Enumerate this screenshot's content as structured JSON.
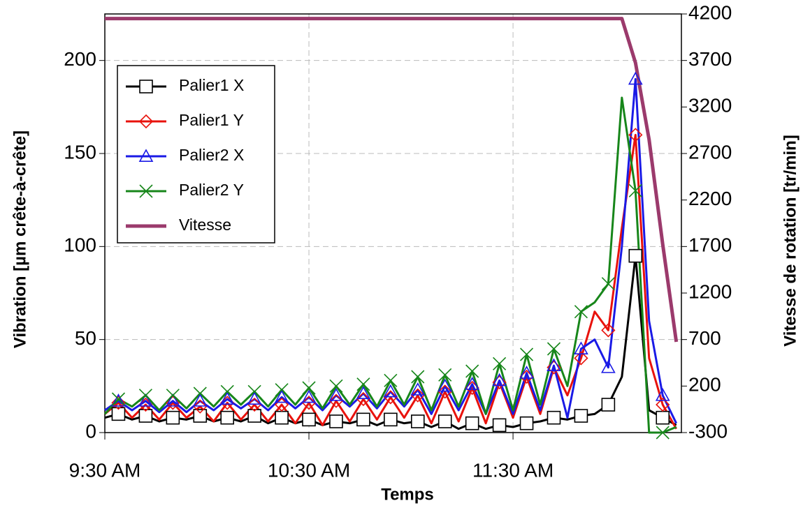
{
  "chart_data": {
    "type": "line",
    "x_label": "Temps",
    "y_label": "Vibration [µm crête-à-crête]",
    "y2_label": "Vitesse de rotation [tr/min]",
    "x": [
      570,
      574,
      578,
      582,
      586,
      590,
      594,
      598,
      602,
      606,
      610,
      614,
      618,
      622,
      626,
      630,
      634,
      638,
      642,
      646,
      650,
      654,
      658,
      662,
      666,
      670,
      674,
      678,
      682,
      686,
      690,
      694,
      698,
      702,
      706,
      710,
      714,
      718,
      722,
      726,
      730,
      734,
      738
    ],
    "xlim": [
      570,
      739.5
    ],
    "xticks": [
      {
        "value": 570,
        "label": "9:30 AM"
      },
      {
        "value": 630,
        "label": "10:30 AM"
      },
      {
        "value": 690,
        "label": "11:30 AM"
      }
    ],
    "ylim": [
      0,
      225
    ],
    "yticks": [
      0,
      50,
      100,
      150,
      200
    ],
    "y2lim": [
      -300,
      4200
    ],
    "y2ticks": [
      -300,
      200,
      700,
      1200,
      1700,
      2200,
      2700,
      3200,
      3700,
      4200
    ],
    "grid": true,
    "legend": "upper-left",
    "series": [
      {
        "name": "Palier1 X",
        "color": "#000000",
        "marker": "square",
        "values": [
          8,
          10,
          7,
          9,
          6,
          8,
          7,
          9,
          6,
          8,
          6,
          9,
          5,
          8,
          5,
          7,
          4,
          6,
          5,
          7,
          4,
          7,
          5,
          6,
          3,
          6,
          2,
          5,
          2,
          4,
          3,
          5,
          6,
          8,
          7,
          9,
          10,
          15,
          30,
          95,
          12,
          8,
          4
        ]
      },
      {
        "name": "Palier1 Y",
        "color": "#e8120c",
        "marker": "diamond",
        "values": [
          10,
          16,
          8,
          15,
          7,
          16,
          8,
          14,
          6,
          16,
          7,
          15,
          6,
          15,
          5,
          16,
          4,
          17,
          6,
          18,
          7,
          19,
          8,
          20,
          5,
          22,
          6,
          24,
          5,
          27,
          8,
          30,
          10,
          35,
          20,
          40,
          65,
          55,
          110,
          160,
          40,
          15,
          2
        ]
      },
      {
        "name": "Palier2 X",
        "color": "#1a1ae6",
        "marker": "triangle",
        "values": [
          12,
          17,
          12,
          17,
          11,
          17,
          11,
          17,
          12,
          18,
          13,
          18,
          12,
          19,
          13,
          19,
          12,
          20,
          14,
          21,
          13,
          22,
          14,
          23,
          10,
          25,
          12,
          26,
          10,
          28,
          10,
          32,
          12,
          36,
          8,
          45,
          50,
          35,
          100,
          190,
          60,
          20,
          5
        ]
      },
      {
        "name": "Palier2 Y",
        "color": "#17861a",
        "marker": "x",
        "values": [
          10,
          18,
          14,
          20,
          12,
          20,
          13,
          21,
          14,
          22,
          15,
          22,
          14,
          23,
          15,
          24,
          13,
          25,
          15,
          26,
          14,
          28,
          15,
          30,
          12,
          31,
          14,
          33,
          10,
          37,
          12,
          42,
          15,
          45,
          25,
          65,
          70,
          80,
          180,
          130,
          0,
          0,
          3
        ]
      },
      {
        "name": "Vitesse",
        "color": "#9b3a6c",
        "axis": "y2",
        "values": [
          4150,
          4150,
          4150,
          4150,
          4150,
          4150,
          4150,
          4150,
          4150,
          4150,
          4150,
          4150,
          4150,
          4150,
          4150,
          4150,
          4150,
          4150,
          4150,
          4150,
          4150,
          4150,
          4150,
          4150,
          4150,
          4150,
          4150,
          4150,
          4150,
          4150,
          4150,
          4150,
          4150,
          4150,
          4150,
          4150,
          4150,
          4150,
          4150,
          3675,
          2850,
          1725,
          675
        ]
      }
    ]
  }
}
